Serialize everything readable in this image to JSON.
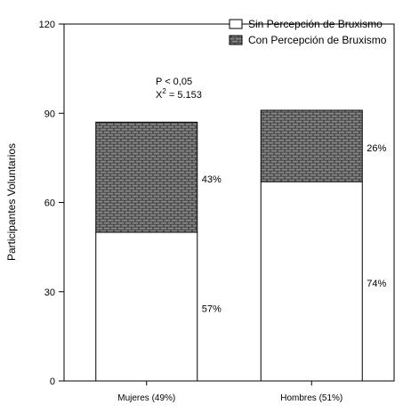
{
  "chart_data": {
    "type": "bar",
    "stacked": true,
    "categories": [
      "Mujeres (49%)",
      "Hombres (51%)"
    ],
    "series": [
      {
        "name": "Sin Percepción de Bruxismo",
        "values": [
          50,
          67
        ],
        "labels": [
          "57%",
          "74%"
        ],
        "fill": "#ffffff"
      },
      {
        "name": "Con Percepción de Bruxismo",
        "values": [
          37,
          24
        ],
        "labels": [
          "43%",
          "26%"
        ],
        "fill": "brick-pattern"
      }
    ],
    "ylabel": "Participantes Voluntarios",
    "xlabel": "",
    "ylim": [
      0,
      120
    ],
    "yticks": [
      0,
      30,
      60,
      90,
      120
    ],
    "grid": false,
    "legend_position": "top-right",
    "annotations": {
      "p_value": "P < 0,05",
      "chi_prefix": "X",
      "chi_sup": "2",
      "chi_value": " = 5.153"
    }
  }
}
